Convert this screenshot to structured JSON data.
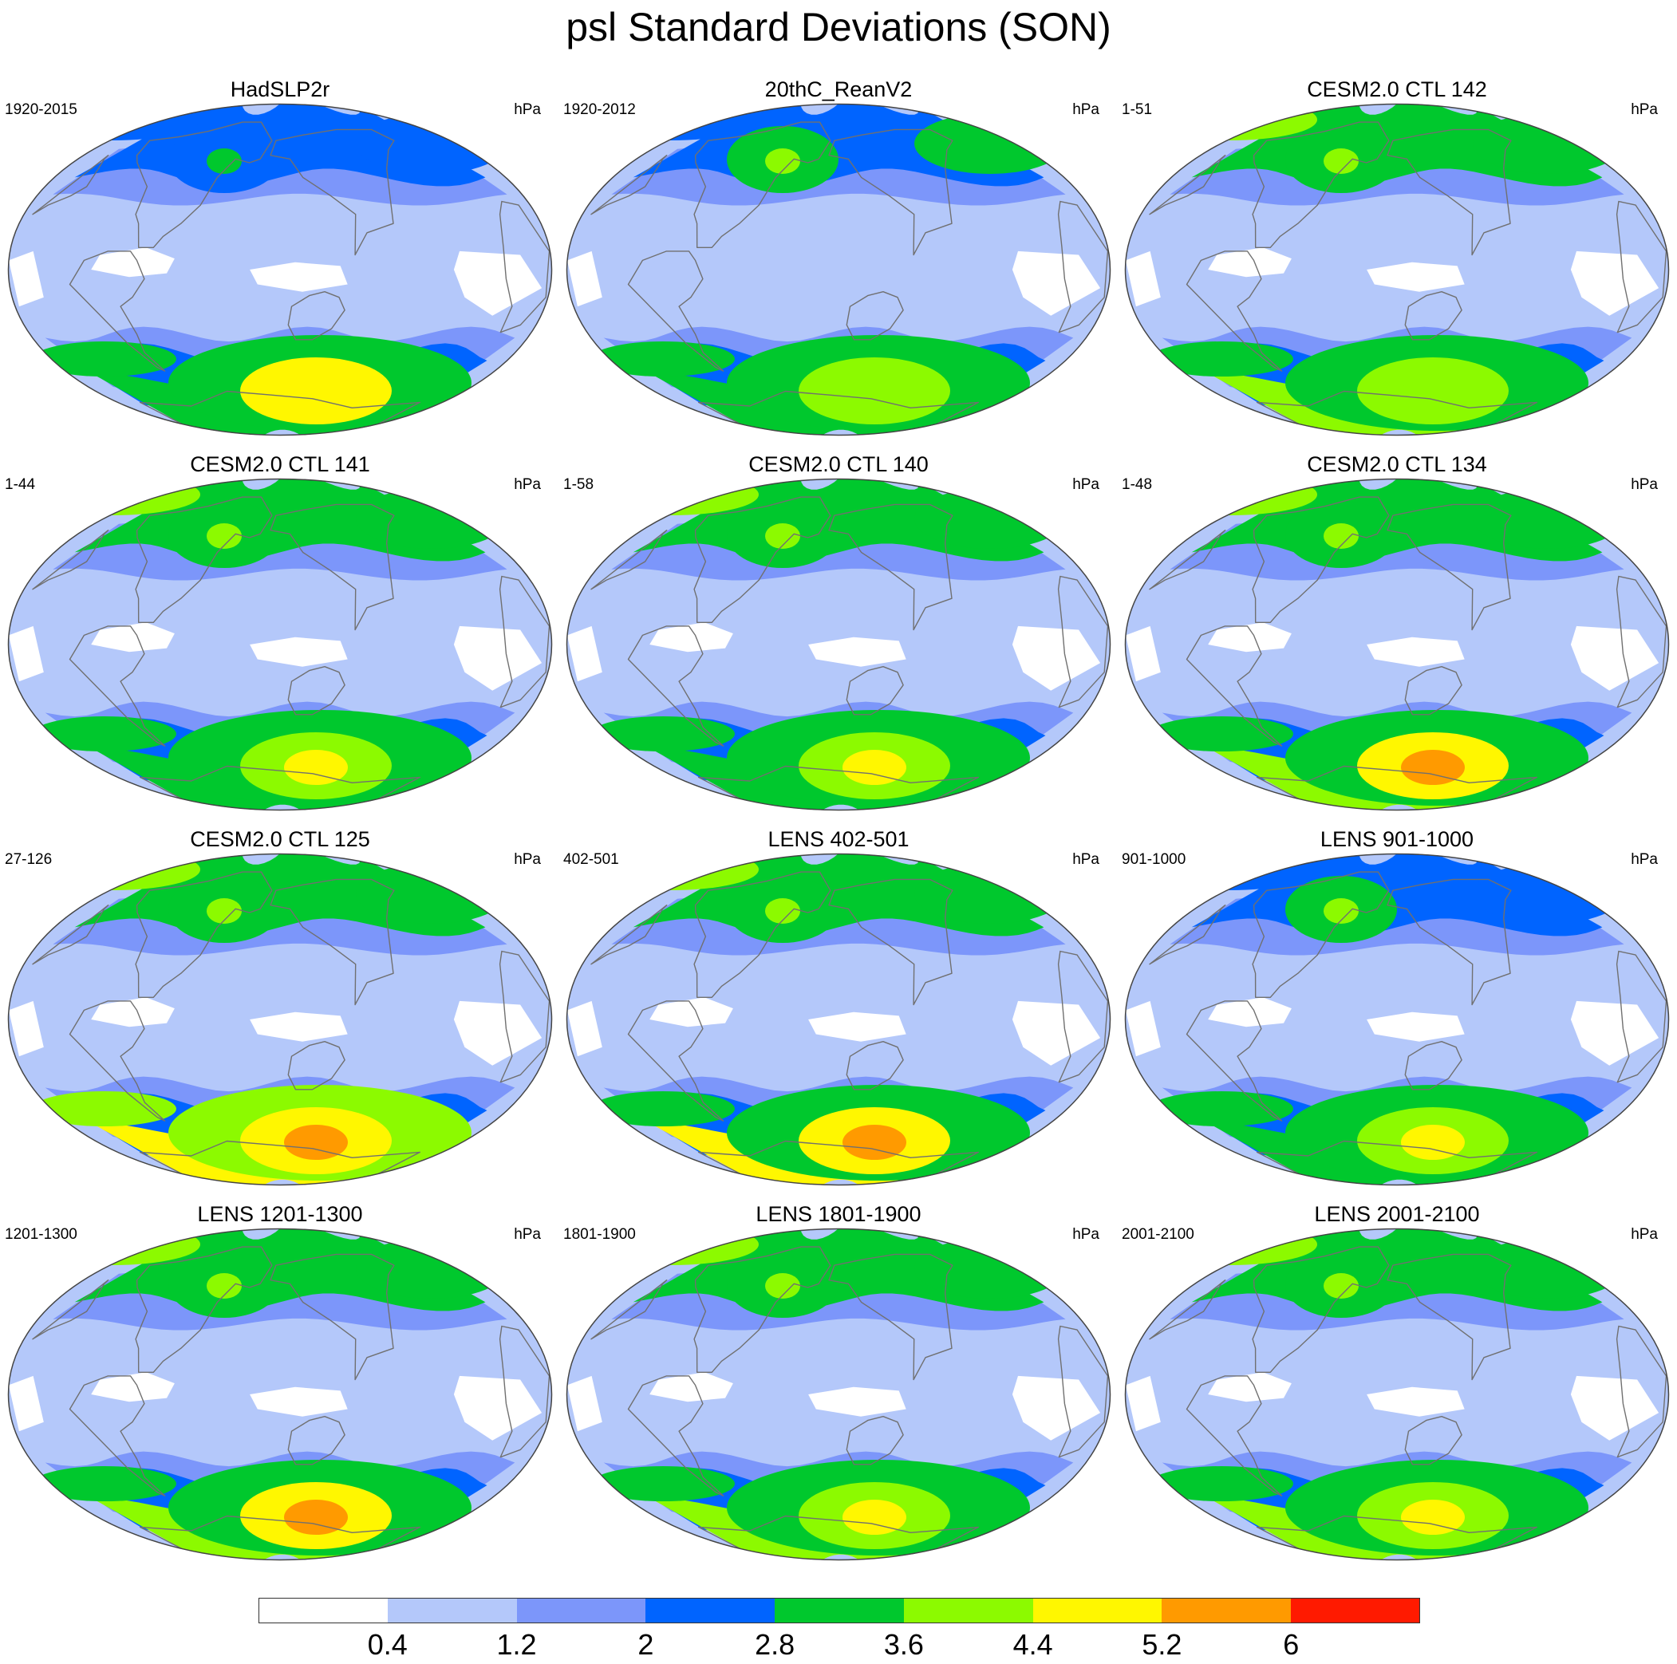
{
  "title": "psl Standard Deviations (SON)",
  "colors": {
    "level_fills": [
      "#ffffff",
      "#b4c8fa",
      "#7c96fa",
      "#0064ff",
      "#00c82d",
      "#8cfa00",
      "#fff700",
      "#ff9a00",
      "#ff1a00"
    ],
    "coast": "#707070",
    "outline": "#444444"
  },
  "panels": [
    {
      "title": "HadSLP2r",
      "left_label": "1920-2015",
      "right_label": "hPa",
      "levels": {
        "north_band": 3,
        "aleutian": 3,
        "icelandic": 3,
        "south_band": 3,
        "south_core": 4,
        "south_peak": 6,
        "south_max": 6,
        "polar_cap": 4,
        "tropic_white": 0
      }
    },
    {
      "title": "20thC_ReanV2",
      "left_label": "1920-2012",
      "right_label": "hPa",
      "levels": {
        "north_band": 3,
        "aleutian": 4,
        "icelandic": 4,
        "south_band": 3,
        "south_core": 4,
        "south_peak": 5,
        "south_max": 5,
        "polar_cap": 4,
        "tropic_white": 1
      }
    },
    {
      "title": "CESM2.0 CTL 142",
      "left_label": "1-51",
      "right_label": "hPa",
      "levels": {
        "north_band": 4,
        "aleutian": 4,
        "icelandic": 4,
        "south_band": 3,
        "south_core": 4,
        "south_peak": 5,
        "south_max": 5,
        "polar_cap": 5,
        "tropic_white": 0
      }
    },
    {
      "title": "CESM2.0 CTL 141",
      "left_label": "1-44",
      "right_label": "hPa",
      "levels": {
        "north_band": 4,
        "aleutian": 4,
        "icelandic": 4,
        "south_band": 3,
        "south_core": 4,
        "south_peak": 5,
        "south_max": 6,
        "polar_cap": 4,
        "tropic_white": 0
      }
    },
    {
      "title": "CESM2.0 CTL 140",
      "left_label": "1-58",
      "right_label": "hPa",
      "levels": {
        "north_band": 4,
        "aleutian": 4,
        "icelandic": 4,
        "south_band": 3,
        "south_core": 4,
        "south_peak": 5,
        "south_max": 6,
        "polar_cap": 4,
        "tropic_white": 0
      }
    },
    {
      "title": "CESM2.0 CTL 134",
      "left_label": "1-48",
      "right_label": "hPa",
      "levels": {
        "north_band": 4,
        "aleutian": 4,
        "icelandic": 4,
        "south_band": 3,
        "south_core": 4,
        "south_peak": 6,
        "south_max": 7,
        "polar_cap": 5,
        "tropic_white": 0
      }
    },
    {
      "title": "CESM2.0 CTL 125",
      "left_label": "27-126",
      "right_label": "hPa",
      "levels": {
        "north_band": 4,
        "aleutian": 4,
        "icelandic": 4,
        "south_band": 3,
        "south_core": 5,
        "south_peak": 6,
        "south_max": 7,
        "polar_cap": 6,
        "tropic_white": 0
      }
    },
    {
      "title": "LENS 402-501",
      "left_label": "402-501",
      "right_label": "hPa",
      "levels": {
        "north_band": 4,
        "aleutian": 4,
        "icelandic": 4,
        "south_band": 3,
        "south_core": 4,
        "south_peak": 6,
        "south_max": 7,
        "polar_cap": 6,
        "tropic_white": 0
      }
    },
    {
      "title": "LENS 901-1000",
      "left_label": "901-1000",
      "right_label": "hPa",
      "levels": {
        "north_band": 3,
        "aleutian": 4,
        "icelandic": 3,
        "south_band": 3,
        "south_core": 4,
        "south_peak": 5,
        "south_max": 6,
        "polar_cap": 4,
        "tropic_white": 0
      }
    },
    {
      "title": "LENS 1201-1300",
      "left_label": "1201-1300",
      "right_label": "hPa",
      "levels": {
        "north_band": 4,
        "aleutian": 4,
        "icelandic": 4,
        "south_band": 3,
        "south_core": 4,
        "south_peak": 6,
        "south_max": 7,
        "polar_cap": 5,
        "tropic_white": 0
      }
    },
    {
      "title": "LENS 1801-1900",
      "left_label": "1801-1900",
      "right_label": "hPa",
      "levels": {
        "north_band": 4,
        "aleutian": 4,
        "icelandic": 4,
        "south_band": 3,
        "south_core": 4,
        "south_peak": 5,
        "south_max": 6,
        "polar_cap": 5,
        "tropic_white": 0
      }
    },
    {
      "title": "LENS 2001-2100",
      "left_label": "2001-2100",
      "right_label": "hPa",
      "levels": {
        "north_band": 4,
        "aleutian": 4,
        "icelandic": 4,
        "south_band": 3,
        "south_core": 4,
        "south_peak": 5,
        "south_max": 6,
        "polar_cap": 5,
        "tropic_white": 0
      }
    }
  ],
  "colorbar": {
    "labels": [
      "0.4",
      "1.2",
      "2",
      "2.8",
      "3.6",
      "4.4",
      "5.2",
      "6"
    ]
  }
}
